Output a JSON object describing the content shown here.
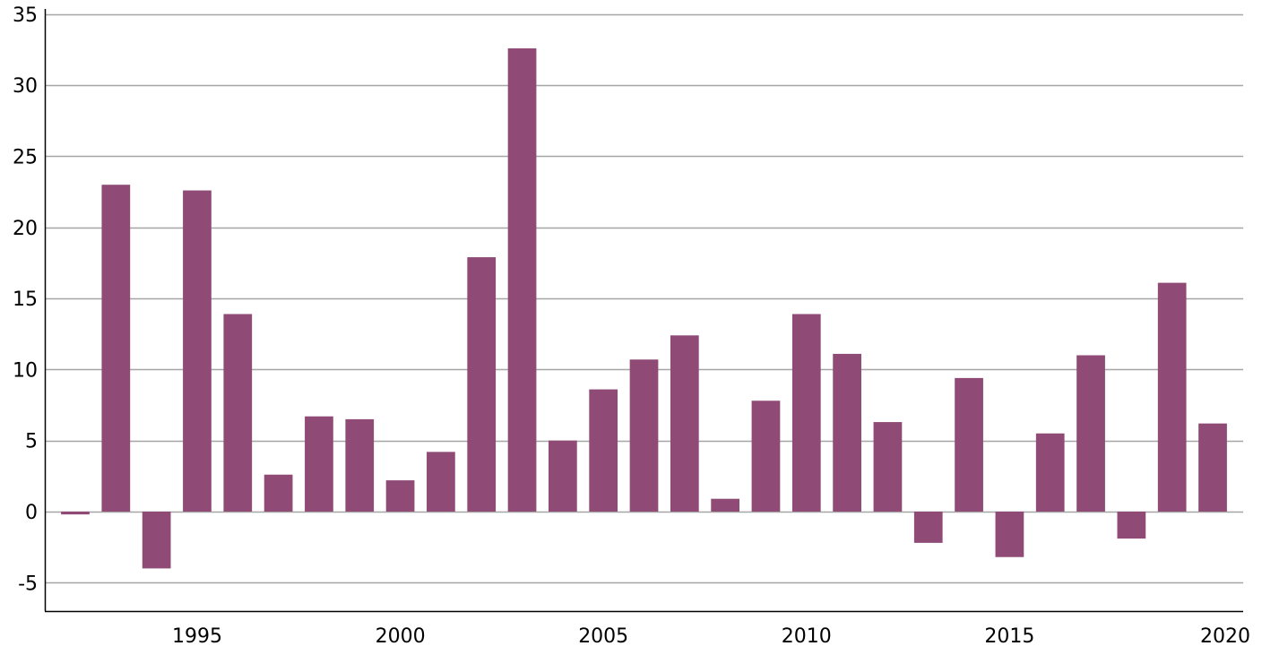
{
  "chart_data": {
    "type": "bar",
    "title": "",
    "xlabel": "",
    "ylabel": "",
    "x": [
      1992,
      1993,
      1994,
      1995,
      1996,
      1997,
      1998,
      1999,
      2000,
      2001,
      2002,
      2003,
      2004,
      2005,
      2006,
      2007,
      2008,
      2009,
      2010,
      2011,
      2012,
      2013,
      2014,
      2015,
      2016,
      2017,
      2018,
      2019,
      2020
    ],
    "values": [
      -0.2,
      23.0,
      -4.0,
      22.6,
      13.9,
      2.6,
      6.7,
      6.5,
      2.2,
      4.2,
      17.9,
      32.6,
      5.0,
      8.6,
      10.7,
      12.4,
      0.9,
      7.8,
      13.9,
      11.1,
      6.3,
      -2.2,
      9.4,
      -3.2,
      5.5,
      11.0,
      -1.9,
      16.1,
      6.2
    ],
    "ylim": [
      -7,
      36
    ],
    "xlim": [
      1991.25,
      2020.75
    ],
    "yticks": [
      -5,
      0,
      5,
      10,
      15,
      20,
      25,
      30,
      35
    ],
    "ytick_labels": [
      "-5",
      "0",
      "5",
      "10",
      "15",
      "20",
      "25",
      "30",
      "35"
    ],
    "xticks": [
      1995,
      2000,
      2005,
      2010,
      2015,
      2020
    ],
    "xtick_labels": [
      "1995",
      "2000",
      "2005",
      "2010",
      "2015",
      "2020"
    ],
    "grid": true,
    "bar_color": "#8f4b76",
    "grid_color": "#a6a6a6",
    "axis_color": "#000000"
  }
}
